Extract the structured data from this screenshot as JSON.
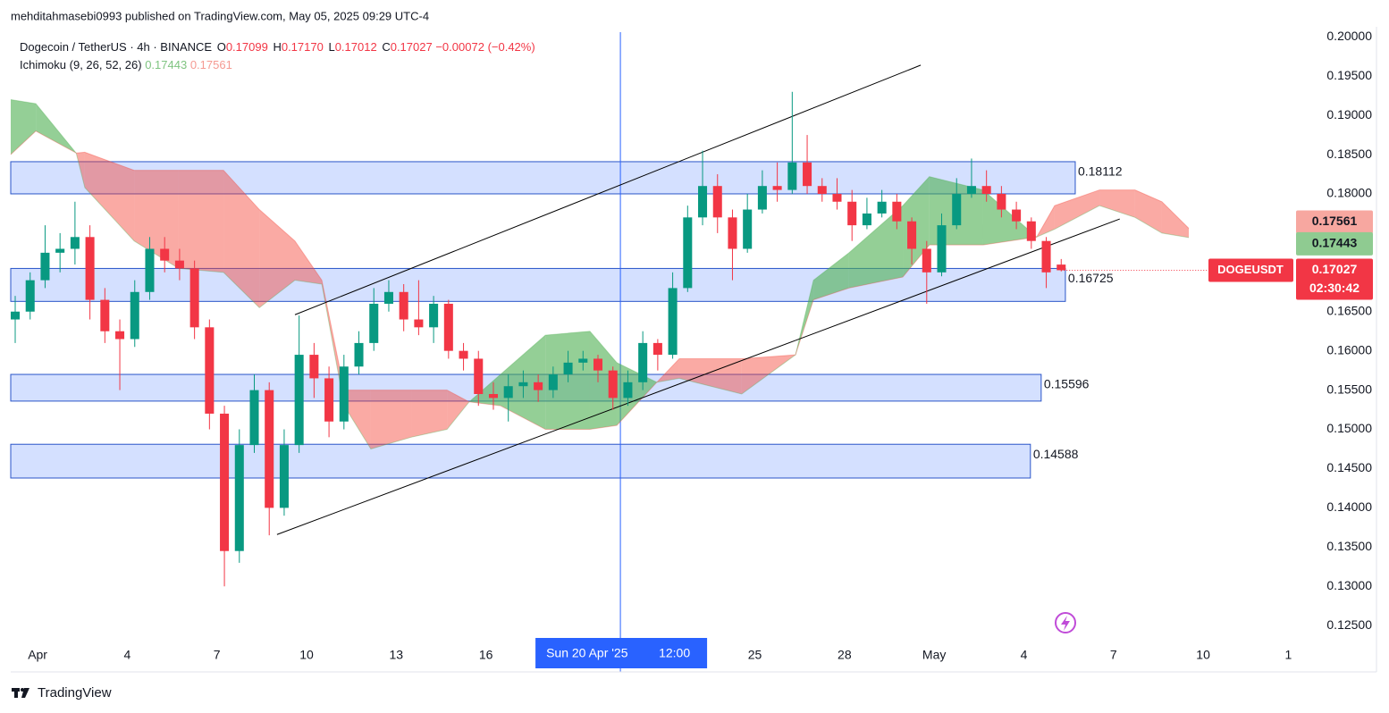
{
  "header": {
    "attribution": "mehditahmasebi0993 published on TradingView.com, May 05, 2025 09:29 UTC-4"
  },
  "footer": {
    "brand": "TradingView"
  },
  "chart_data": {
    "type": "candlestick",
    "title": "Dogecoin / TetherUS · 4h · BINANCE",
    "legend_values": {
      "open_label": "O",
      "open": 0.17099,
      "high_label": "H",
      "high": {
        "value": 0.1717,
        "label": "0.17170"
      },
      "low_label": "L",
      "low": 0.17012,
      "close_label": "C",
      "close": 0.17027,
      "change": {
        "value": -0.00072,
        "label": "−0.00072"
      },
      "change_pct": {
        "value": -0.42,
        "label": "(−0.42%)"
      }
    },
    "up_color": "#089981",
    "down_color": "#f23645",
    "x": [
      -0.75,
      -0.25,
      0.25,
      0.75,
      1.25,
      1.75,
      2.25,
      2.75,
      3.25,
      3.75,
      4.25,
      4.75,
      5.25,
      5.75,
      6.25,
      6.75,
      7.25,
      7.75,
      8.25,
      8.75,
      9.25,
      9.75,
      10.25,
      10.75,
      11.25,
      11.75,
      12.25,
      12.75,
      13.25,
      13.75,
      14.25,
      14.75,
      15.25,
      15.75,
      16.25,
      16.75,
      17.25,
      17.75,
      18.25,
      18.75,
      19.25,
      19.75,
      20.25,
      20.75,
      21.25,
      21.75,
      22.25,
      22.75,
      23.25,
      23.75,
      24.25,
      24.75,
      25.25,
      25.75,
      26.25,
      26.75,
      27.25,
      27.75,
      28.25,
      28.75,
      29.25,
      29.75,
      30.25,
      30.75,
      31.25,
      31.75,
      32.25,
      32.75,
      33.25,
      33.75,
      34.25
    ],
    "open": [
      0.164,
      0.165,
      0.169,
      0.1725,
      0.173,
      0.1745,
      0.1665,
      0.1625,
      0.1615,
      0.1675,
      0.173,
      0.1715,
      0.1705,
      0.163,
      0.152,
      0.1345,
      0.148,
      0.155,
      0.14,
      0.148,
      0.1595,
      0.1565,
      0.151,
      0.158,
      0.161,
      0.166,
      0.1675,
      0.164,
      0.163,
      0.166,
      0.16,
      0.159,
      0.1545,
      0.154,
      0.1555,
      0.156,
      0.155,
      0.157,
      0.1585,
      0.159,
      0.1575,
      0.154,
      0.156,
      0.161,
      0.1595,
      0.168,
      0.177,
      0.181,
      0.177,
      0.173,
      0.178,
      0.181,
      0.1805,
      0.184,
      0.181,
      0.18,
      0.179,
      0.176,
      0.1775,
      0.179,
      0.1765,
      0.173,
      0.17,
      0.176,
      0.18,
      0.181,
      0.18,
      0.178,
      0.1765,
      0.174,
      0.17099
    ],
    "high": [
      0.167,
      0.17,
      0.176,
      0.175,
      0.179,
      0.176,
      0.168,
      0.164,
      0.169,
      0.1745,
      0.1745,
      0.173,
      0.1715,
      0.164,
      0.153,
      0.15,
      0.157,
      0.156,
      0.15,
      0.1645,
      0.161,
      0.158,
      0.1595,
      0.1625,
      0.168,
      0.169,
      0.1685,
      0.169,
      0.167,
      0.1665,
      0.161,
      0.16,
      0.156,
      0.157,
      0.1575,
      0.157,
      0.158,
      0.16,
      0.16,
      0.1595,
      0.158,
      0.1575,
      0.1625,
      0.1615,
      0.17,
      0.1785,
      0.1855,
      0.1825,
      0.178,
      0.18,
      0.183,
      0.184,
      0.193,
      0.1875,
      0.182,
      0.182,
      0.1805,
      0.1795,
      0.1805,
      0.18,
      0.177,
      0.174,
      0.1775,
      0.182,
      0.1845,
      0.183,
      0.181,
      0.179,
      0.177,
      0.1745,
      0.1717
    ],
    "low": [
      0.161,
      0.164,
      0.168,
      0.17,
      0.171,
      0.164,
      0.161,
      0.155,
      0.1605,
      0.1665,
      0.17,
      0.169,
      0.1615,
      0.15,
      0.13,
      0.133,
      0.147,
      0.1365,
      0.139,
      0.147,
      0.154,
      0.149,
      0.15,
      0.157,
      0.16,
      0.165,
      0.1625,
      0.162,
      0.161,
      0.159,
      0.1575,
      0.153,
      0.1525,
      0.151,
      0.154,
      0.1535,
      0.154,
      0.156,
      0.1575,
      0.156,
      0.1525,
      0.153,
      0.155,
      0.1575,
      0.159,
      0.1675,
      0.176,
      0.175,
      0.169,
      0.1725,
      0.1775,
      0.179,
      0.18,
      0.18,
      0.179,
      0.178,
      0.174,
      0.1755,
      0.177,
      0.1755,
      0.171,
      0.166,
      0.1695,
      0.1755,
      0.1795,
      0.179,
      0.177,
      0.1755,
      0.173,
      0.168,
      0.17012
    ],
    "close": [
      0.165,
      0.169,
      0.1725,
      0.173,
      0.1745,
      0.1665,
      0.1625,
      0.1615,
      0.1675,
      0.173,
      0.1715,
      0.1705,
      0.163,
      0.152,
      0.1345,
      0.148,
      0.155,
      0.14,
      0.148,
      0.1595,
      0.1565,
      0.151,
      0.158,
      0.161,
      0.166,
      0.1675,
      0.164,
      0.163,
      0.166,
      0.16,
      0.159,
      0.1545,
      0.154,
      0.1555,
      0.156,
      0.155,
      0.157,
      0.1585,
      0.159,
      0.1575,
      0.154,
      0.156,
      0.161,
      0.1595,
      0.168,
      0.177,
      0.181,
      0.177,
      0.173,
      0.178,
      0.181,
      0.1805,
      0.184,
      0.181,
      0.18,
      0.179,
      0.176,
      0.1775,
      0.179,
      0.1765,
      0.173,
      0.17,
      0.176,
      0.18,
      0.181,
      0.18,
      0.178,
      0.1765,
      0.174,
      0.17,
      0.17027
    ],
    "ichimoku": {
      "label": "Ichimoku (9, 26, 52, 26)",
      "x": [
        -0.9,
        -0.06,
        1.29,
        1.58,
        3.23,
        4.72,
        6.22,
        7.42,
        8.61,
        9.51,
        10.26,
        11.15,
        12.5,
        13.7,
        14.44,
        15.49,
        16.99,
        18.48,
        19.38,
        20.72,
        21.47,
        23.56,
        25.36,
        25.96,
        27.15,
        28.95,
        29.84,
        31.64,
        33.43,
        34.03,
        35.53,
        36.72,
        37.62,
        38.52
      ],
      "series": [
        {
          "color": "#4caf50",
          "values": [
            0.192,
            0.1915,
            0.1852,
            0.1808,
            0.174,
            0.1705,
            0.17,
            0.1655,
            0.169,
            0.1685,
            0.153,
            0.1475,
            0.149,
            0.15,
            0.1535,
            0.157,
            0.162,
            0.1625,
            0.1585,
            0.156,
            0.1565,
            0.1545,
            0.1595,
            0.169,
            0.1725,
            0.1785,
            0.1822,
            0.1805,
            0.1745,
            0.1755,
            0.1785,
            0.177,
            0.175,
            0.17443
          ]
        },
        {
          "color": "#f44336",
          "values": [
            0.185,
            0.188,
            0.1852,
            0.1853,
            0.183,
            0.183,
            0.183,
            0.178,
            0.174,
            0.169,
            0.155,
            0.155,
            0.155,
            0.155,
            0.1535,
            0.153,
            0.15,
            0.15,
            0.1505,
            0.156,
            0.159,
            0.159,
            0.1595,
            0.1665,
            0.168,
            0.1694,
            0.1735,
            0.1735,
            0.1745,
            0.1785,
            0.1805,
            0.1805,
            0.179,
            0.17561
          ]
        }
      ]
    },
    "zones": [
      {
        "high": 0.1841,
        "low": 0.18,
        "x_end": 34.72,
        "label": 0.18112
      },
      {
        "high": 0.1705,
        "low": 0.1663,
        "x_end": 34.39,
        "label": 0.16725
      },
      {
        "high": 0.157,
        "low": 0.1536,
        "x_end": 33.58,
        "label": 0.15596
      },
      {
        "high": 0.1481,
        "low": 0.1438,
        "x_end": 33.22,
        "label": 0.14588
      }
    ],
    "trendlines": [
      {
        "x": [
          8.61,
          29.55
        ],
        "values": [
          0.1646,
          0.1964
        ]
      },
      {
        "x": [
          8.01,
          36.21
        ],
        "values": [
          0.1366,
          0.1768
        ]
      }
    ],
    "crosshair": {
      "x": 19.5,
      "date_label": "Sun 20 Apr '25",
      "time_label": "12:00"
    },
    "symbol_label": "DOGEUSDT",
    "countdown": "02:30:42",
    "grid": false,
    "xlim": [
      -0.9,
      44.8
    ],
    "xticks": [
      {
        "value": 0,
        "label": "Apr"
      },
      {
        "value": 3,
        "label": "4"
      },
      {
        "value": 6,
        "label": "7"
      },
      {
        "value": 9,
        "label": "10"
      },
      {
        "value": 12,
        "label": "13"
      },
      {
        "value": 15,
        "label": "16"
      },
      {
        "value": 24,
        "label": "25"
      },
      {
        "value": 27,
        "label": "28"
      },
      {
        "value": 30,
        "label": "May"
      },
      {
        "value": 33,
        "label": "4"
      },
      {
        "value": 36,
        "label": "7"
      },
      {
        "value": 39,
        "label": "10"
      },
      {
        "value": 41.85,
        "label": "1"
      }
    ],
    "ylim": [
      0.1191,
      0.2006
    ],
    "yticks": [
      {
        "value": 0.125,
        "label": "0.12500"
      },
      {
        "value": 0.13,
        "label": "0.13000"
      },
      {
        "value": 0.135,
        "label": "0.13500"
      },
      {
        "value": 0.14,
        "label": "0.14000"
      },
      {
        "value": 0.145,
        "label": "0.14500"
      },
      {
        "value": 0.15,
        "label": "0.15000"
      },
      {
        "value": 0.155,
        "label": "0.15500"
      },
      {
        "value": 0.16,
        "label": "0.16000"
      },
      {
        "value": 0.165,
        "label": "0.16500"
      },
      {
        "value": 0.17,
        "label": "0.17000"
      },
      {
        "value": 0.175,
        "label": "0.17500"
      },
      {
        "value": 0.18,
        "label": "0.18000"
      },
      {
        "value": 0.185,
        "label": "0.18500"
      },
      {
        "value": 0.19,
        "label": "0.19000"
      },
      {
        "value": 0.195,
        "label": "0.19500"
      },
      {
        "value": 0.2,
        "label": "0.20000"
      }
    ]
  }
}
